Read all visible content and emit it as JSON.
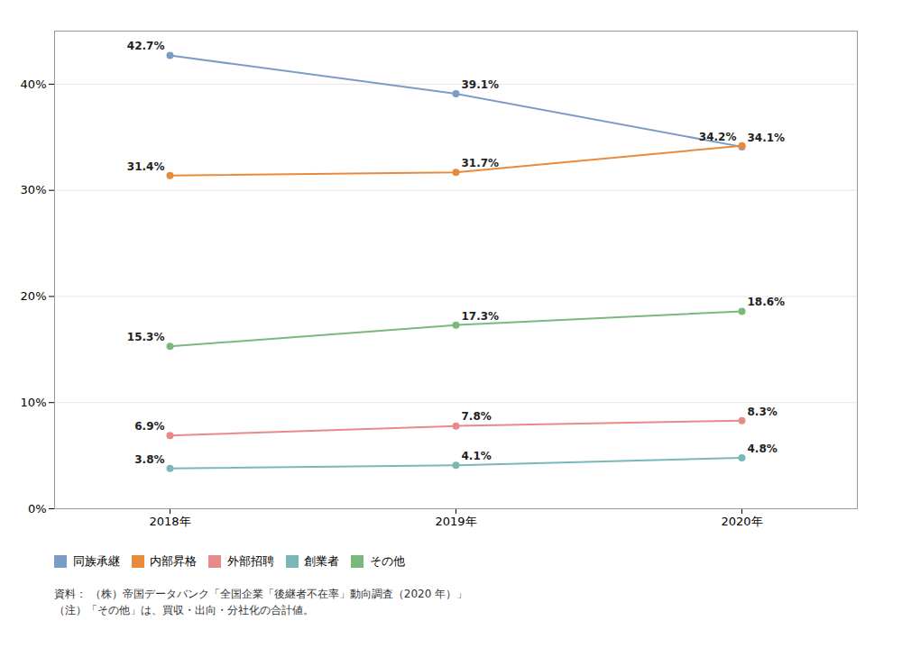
{
  "chart_data": {
    "type": "line",
    "categories": [
      "2018年",
      "2019年",
      "2020年"
    ],
    "series": [
      {
        "name": "同族承継",
        "color": "#7b9cc4",
        "values": [
          42.7,
          39.1,
          34.1
        ],
        "value_labels": [
          "42.7%",
          "39.1%",
          "34.1%"
        ]
      },
      {
        "name": "内部昇格",
        "color": "#e8893c",
        "values": [
          31.4,
          31.7,
          34.2
        ],
        "value_labels": [
          "31.4%",
          "31.7%",
          "34.2%"
        ]
      },
      {
        "name": "外部招聘",
        "color": "#e88a8a",
        "values": [
          6.9,
          7.8,
          8.3
        ],
        "value_labels": [
          "6.9%",
          "7.8%",
          "8.3%"
        ]
      },
      {
        "name": "創業者",
        "color": "#7ab8b8",
        "values": [
          3.8,
          4.1,
          4.8
        ],
        "value_labels": [
          "3.8%",
          "4.1%",
          "4.8%"
        ]
      },
      {
        "name": "その他",
        "color": "#7bb87b",
        "values": [
          15.3,
          17.3,
          18.6
        ],
        "value_labels": [
          "15.3%",
          "17.3%",
          "18.6%"
        ]
      }
    ],
    "ylim": [
      0,
      45
    ],
    "yticks": [
      {
        "value": 0,
        "label": "0%"
      },
      {
        "value": 10,
        "label": "10%"
      },
      {
        "value": 20,
        "label": "20%"
      },
      {
        "value": 30,
        "label": "30%"
      },
      {
        "value": 40,
        "label": "40%"
      }
    ],
    "grid": true,
    "legend": "bottom",
    "data_labels": true,
    "marker": "circle",
    "annotations": [
      "資料： （株）帝国データバンク「全国企業「後継者不在率」動向調査（2020 年）」",
      "（注）「その他」は、買収・出向・分社化の合計値。"
    ]
  }
}
